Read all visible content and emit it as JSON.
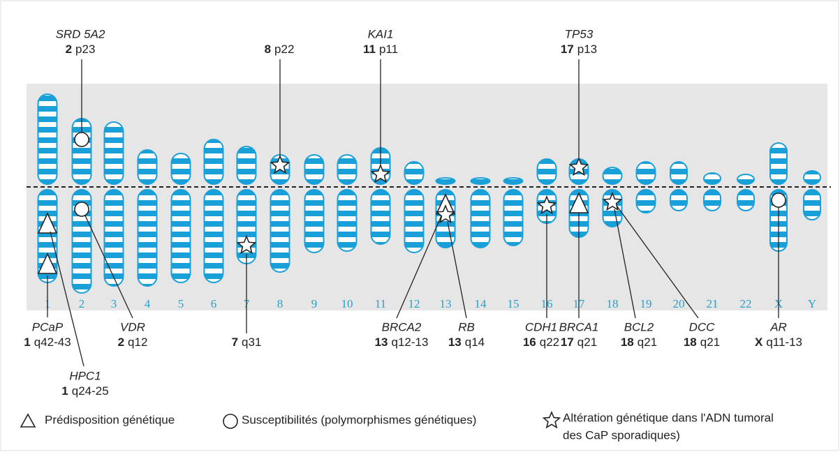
{
  "chromosomes": [
    "1",
    "2",
    "3",
    "4",
    "5",
    "6",
    "7",
    "8",
    "9",
    "10",
    "11",
    "12",
    "13",
    "14",
    "15",
    "16",
    "17",
    "18",
    "19",
    "20",
    "21",
    "22",
    "X",
    "Y"
  ],
  "genes": [
    {
      "name": "SRD 5A2",
      "chrom": "2",
      "band": "p23"
    },
    {
      "chrom": "8",
      "band": "p22"
    },
    {
      "name": "KAI1",
      "chrom": "11",
      "band": "p11"
    },
    {
      "name": "TP53",
      "chrom": "17",
      "band": "p13"
    },
    {
      "name": "PCaP",
      "chrom": "1",
      "band": "q42-43"
    },
    {
      "name": "HPC1",
      "chrom": "1",
      "band": "q24-25"
    },
    {
      "name": "VDR",
      "chrom": "2",
      "band": "q12"
    },
    {
      "chrom": "7",
      "band": "q31"
    },
    {
      "name": "BRCA2",
      "chrom": "13",
      "band": "q12-13"
    },
    {
      "name": "RB",
      "chrom": "13",
      "band": "q14"
    },
    {
      "name": "CDH1",
      "chrom": "16",
      "band": "q22"
    },
    {
      "name": "BRCA1",
      "chrom": "17",
      "band": "q21"
    },
    {
      "name": "BCL2",
      "chrom": "18",
      "band": "q21"
    },
    {
      "name": "DCC",
      "chrom": "18",
      "band": "q21"
    },
    {
      "name": "AR",
      "chrom": "X",
      "band": "q11-13"
    }
  ],
  "legend": {
    "predisposition": "Prédisposition génétique",
    "susceptibility": "Susceptibilités (polymorphismes génétiques)",
    "alteration": [
      "Altération génétique dans l'ADN tumoral",
      "des CaP sporadiques)"
    ]
  }
}
